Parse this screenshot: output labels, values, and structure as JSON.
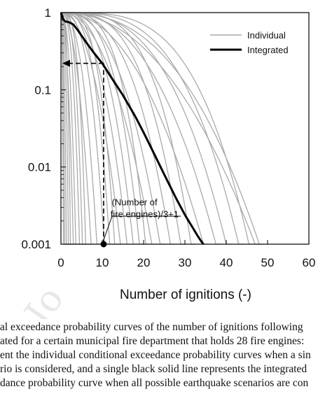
{
  "chart_data": {
    "type": "line",
    "xlabel": "Number of ignitions (-)",
    "ylabel": "",
    "xlim": [
      0,
      60
    ],
    "ylim": [
      0.001,
      1
    ],
    "yscale": "log",
    "x_ticks": [
      "0",
      "10",
      "20",
      "30",
      "40",
      "50",
      "60"
    ],
    "y_ticks": [
      "1",
      "0.1",
      "0.01",
      "0.001"
    ],
    "grid": false,
    "legend": {
      "placement": "top-right",
      "entries": [
        "Individual",
        "Integrated"
      ]
    },
    "series": [
      {
        "name": "Integrated",
        "x": [
          0,
          0.5,
          1,
          2,
          3,
          4,
          6,
          8,
          10,
          12,
          15,
          18,
          20,
          22,
          25,
          28,
          30,
          32,
          33,
          34,
          34.5
        ],
        "values": [
          1,
          0.82,
          0.77,
          0.75,
          0.7,
          0.6,
          0.42,
          0.3,
          0.22,
          0.15,
          0.085,
          0.045,
          0.028,
          0.017,
          0.008,
          0.0038,
          0.0024,
          0.0016,
          0.0013,
          0.00108,
          0.001
        ]
      }
    ],
    "individual_curve_ends": [
      0.6,
      0.9,
      1.3,
      1.8,
      2.3,
      3.0,
      3.6,
      4.5,
      5.2,
      6.0,
      7.3,
      8.7,
      10.5,
      11.8,
      13.0,
      14.4,
      16.0,
      17.5,
      19.0,
      20.5,
      22.0,
      24.0,
      26.5,
      29.0,
      31.5,
      34.5,
      37.5,
      40.0,
      43.0,
      45.5,
      47.0,
      48.0
    ],
    "annotations": {
      "label": "(Number of fire engines)/3+1",
      "label_line1": "(Number of",
      "label_line2": "fire engines)/3+1",
      "marker_x": 10.33,
      "marker_y": 0.001,
      "dashed_to_y": 0.22
    }
  },
  "watermark": "Jo",
  "caption": {
    "lines": [
      "al exceedance probability curves of the number of ignitions following",
      "ated for a certain municipal fire department that holds 28 fire engines:",
      "ent the individual conditional exceedance probability curves when a sin",
      "rio is considered, and a single black solid line represents the integrated",
      "dance probability curve when all possible earthquake scenarios are con"
    ]
  },
  "colors": {
    "individual": "#aaaaaa",
    "integrated": "#000000",
    "axis": "#000000",
    "watermark": "#e8e8e8"
  }
}
